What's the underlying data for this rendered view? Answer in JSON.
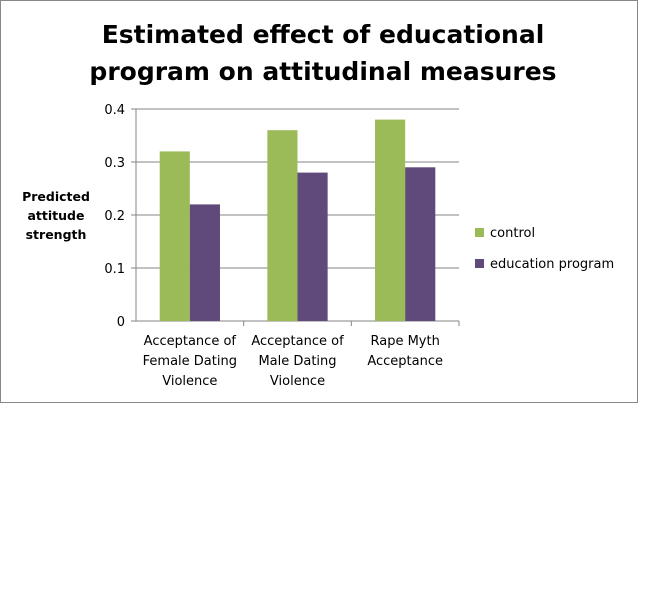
{
  "chart_data": {
    "type": "bar",
    "title": "Estimated effect of educational program on attitudinal measures",
    "title_lines": [
      "Estimated effect of educational",
      "program on attitudinal measures"
    ],
    "ylabel_lines": [
      "Predicted",
      "attitude",
      "strength"
    ],
    "ylabel": "Predicted attitude strength",
    "xlabel": "",
    "categories": [
      "Acceptance of Female Dating Violence",
      "Acceptance of Male Dating Violence",
      "Rape Myth Acceptance"
    ],
    "category_lines": [
      [
        "Acceptance of",
        "Female Dating",
        "Violence"
      ],
      [
        "Acceptance of",
        "Male Dating",
        "Violence"
      ],
      [
        "Rape Myth",
        "Acceptance"
      ]
    ],
    "series": [
      {
        "name": "control",
        "values": [
          0.32,
          0.36,
          0.38
        ],
        "color": "#9BBB59"
      },
      {
        "name": "education program",
        "values": [
          0.22,
          0.28,
          0.29
        ],
        "color": "#604A7B"
      }
    ],
    "ylim": [
      0,
      0.4
    ],
    "yticks": [
      "0",
      "0.1",
      "0.2",
      "0.3",
      "0.4"
    ],
    "grid": true,
    "legend": "right"
  }
}
